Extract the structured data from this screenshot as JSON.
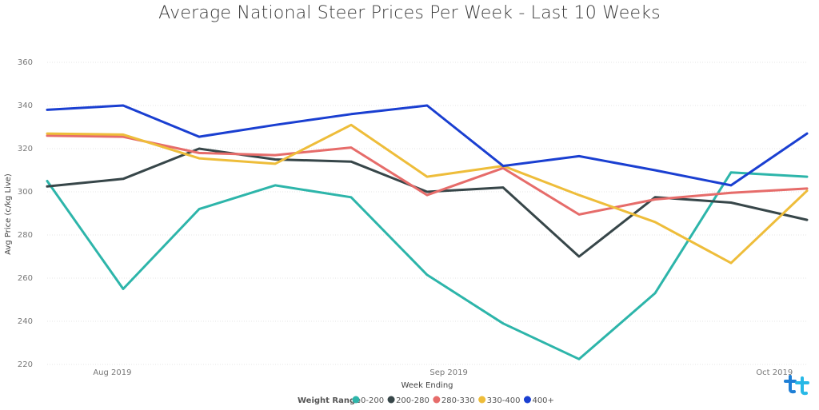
{
  "chart_data": {
    "type": "line",
    "title": "Average National Steer Prices Per Week - Last 10 Weeks",
    "xlabel": "Week Ending",
    "ylabel": "Avg Price (c/kg Live)",
    "ylim": [
      220,
      360
    ],
    "yticks": [
      "220",
      "240",
      "260",
      "280",
      "300",
      "320",
      "340",
      "360"
    ],
    "xtick_labels": [
      "Aug 2019",
      "Sep 2019",
      "Oct 2019"
    ],
    "grid": true,
    "legend_title": "Weight Range",
    "legend_placement": "bottom",
    "x": [
      "2019-07-26",
      "2019-08-02",
      "2019-08-09",
      "2019-08-16",
      "2019-08-23",
      "2019-08-30",
      "2019-09-06",
      "2019-09-13",
      "2019-09-20",
      "2019-09-27",
      "2019-10-04"
    ],
    "series": [
      {
        "name": "0-200",
        "color": "#2db5aa",
        "values": [
          305,
          255,
          292,
          303,
          297.5,
          261.5,
          239,
          222.5,
          253,
          309,
          307
        ]
      },
      {
        "name": "200-280",
        "color": "#374649",
        "values": [
          302.5,
          306,
          320,
          315,
          314,
          300,
          302,
          270,
          297.5,
          295,
          287
        ]
      },
      {
        "name": "280-330",
        "color": "#e66c6a",
        "values": [
          326,
          325.5,
          318,
          317,
          320.5,
          298.5,
          311,
          289.5,
          296.5,
          299.5,
          301.5
        ]
      },
      {
        "name": "330-400",
        "color": "#eebd3a",
        "values": [
          327,
          326.5,
          315.5,
          313,
          331,
          307,
          312,
          298.5,
          286,
          267,
          300.5
        ]
      },
      {
        "name": "400+",
        "color": "#1a3fd1",
        "values": [
          338,
          340,
          325.5,
          331,
          336,
          340,
          312,
          316.5,
          310,
          303,
          327
        ]
      }
    ]
  }
}
